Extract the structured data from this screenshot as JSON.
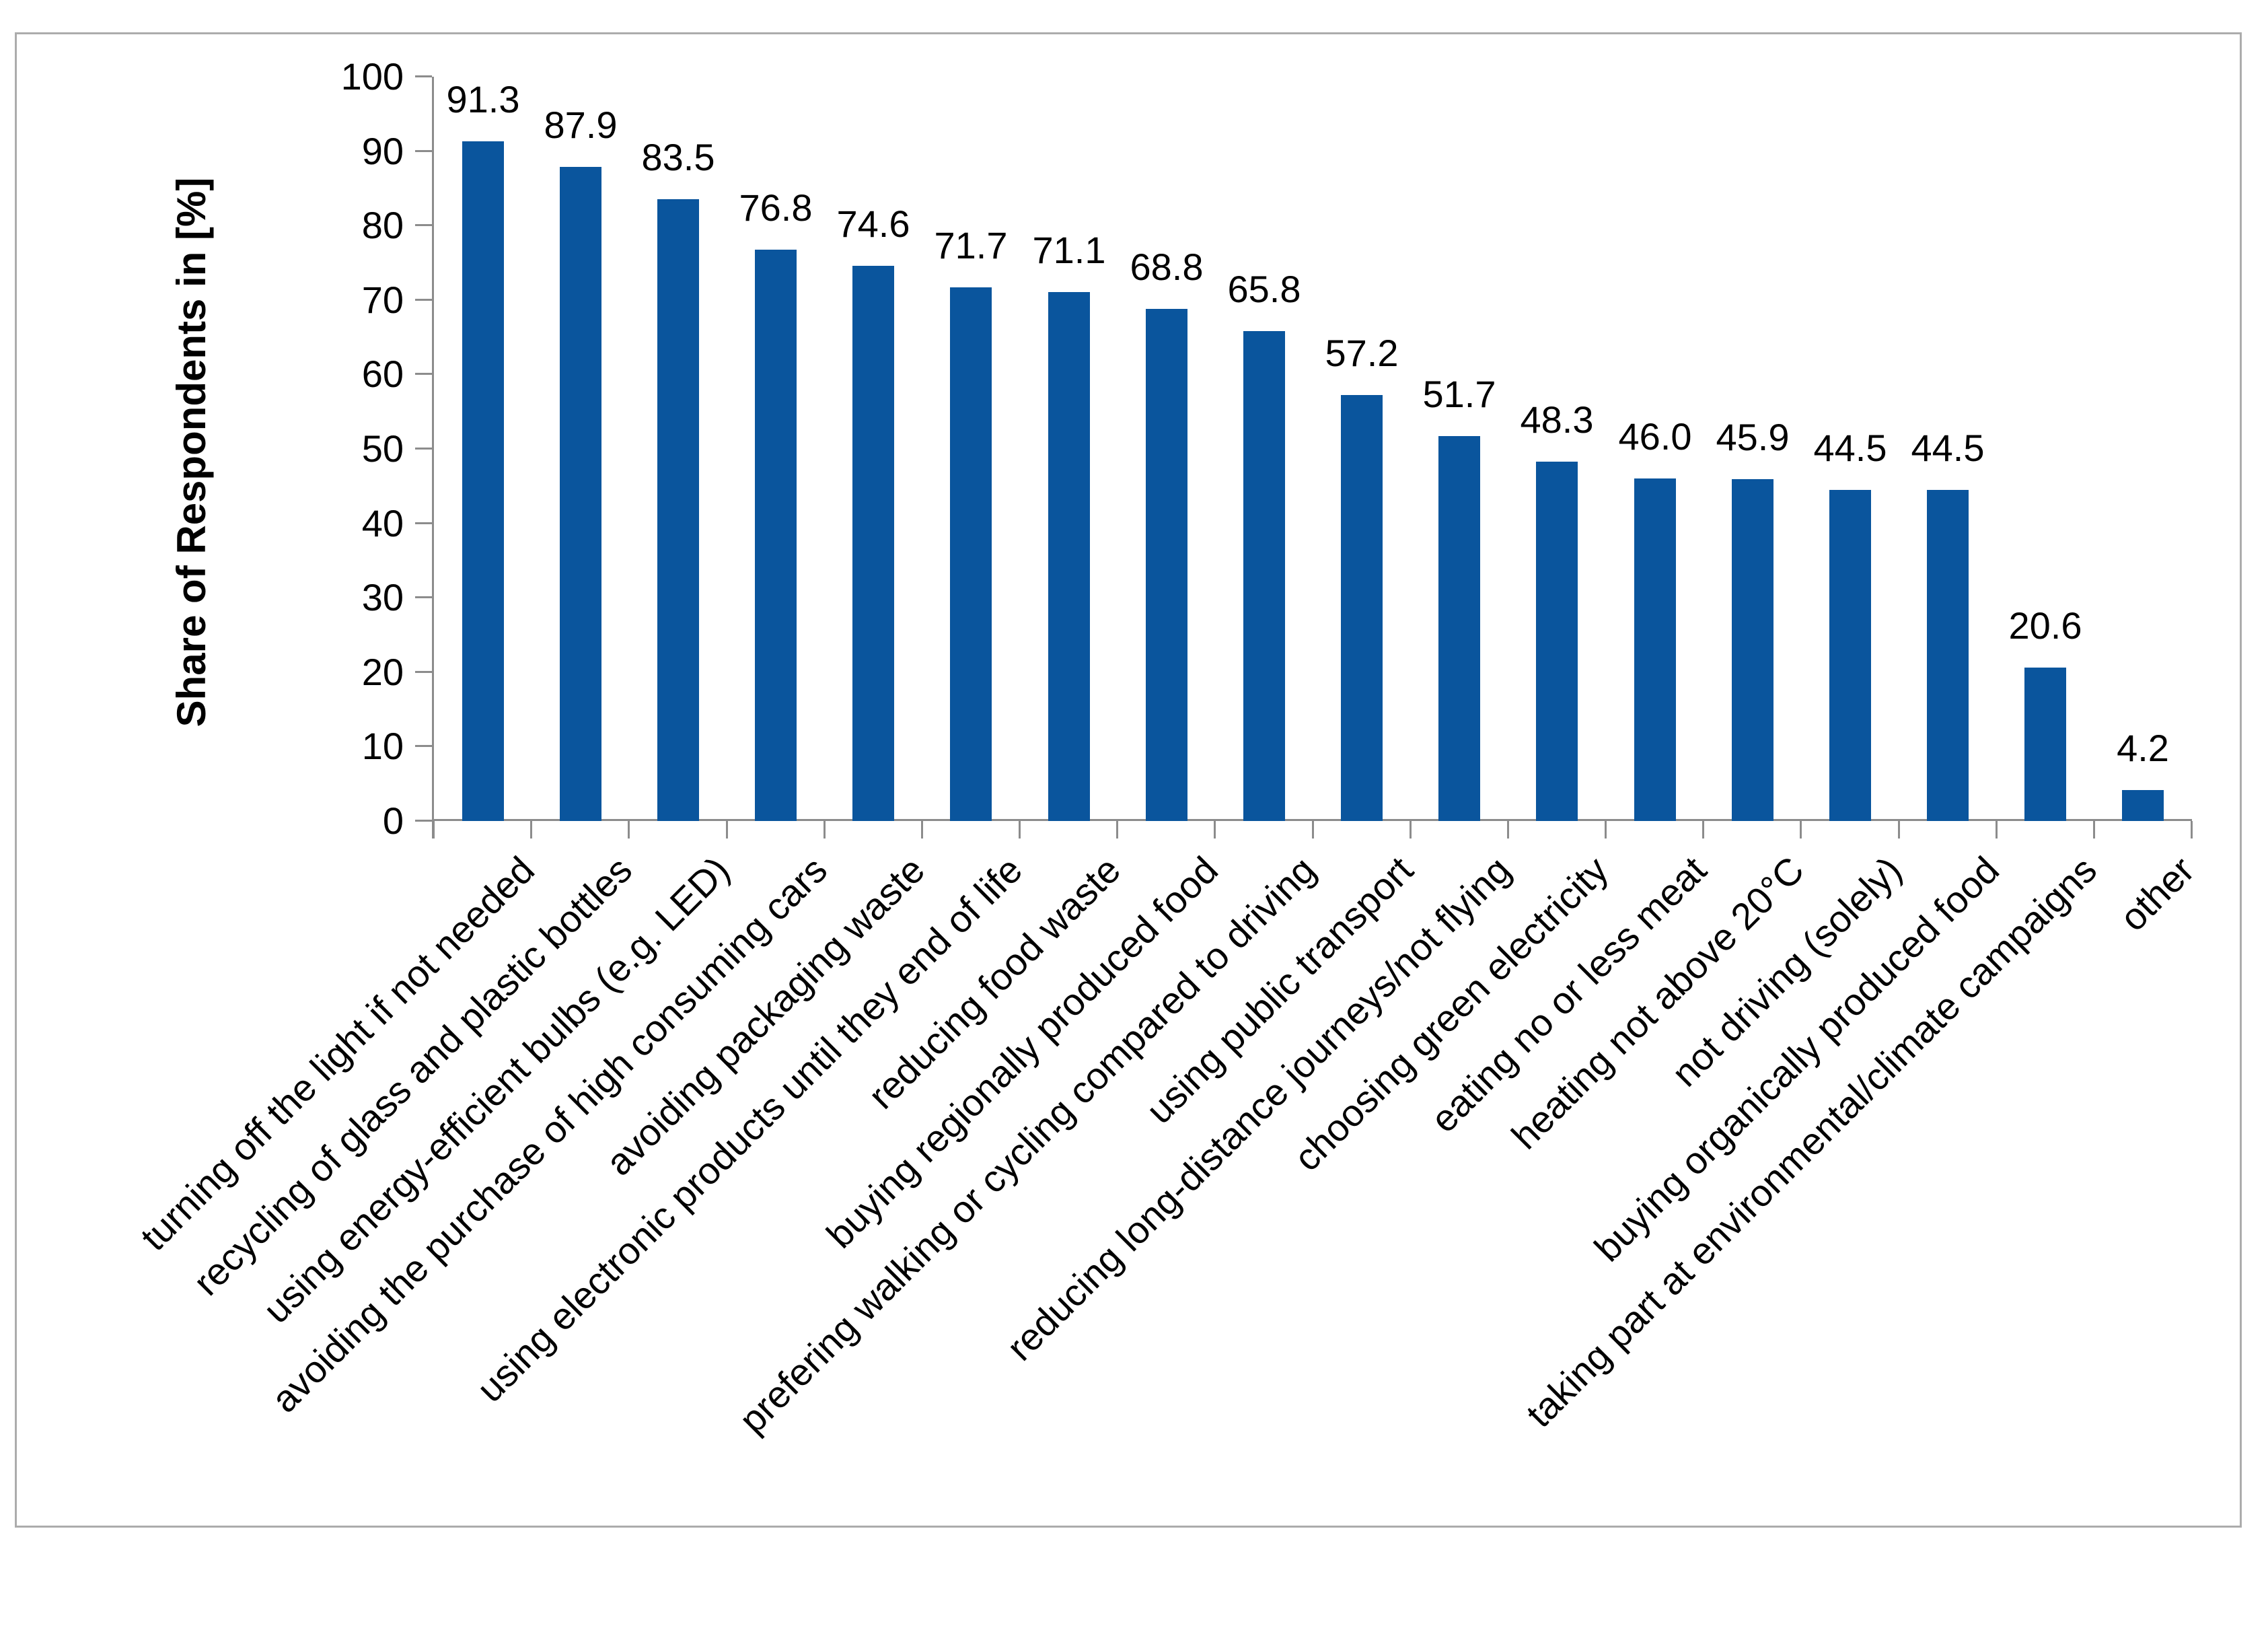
{
  "chart_data": {
    "type": "bar",
    "title": "",
    "xlabel": "",
    "ylabel": "Share of Respondents in [%]",
    "ylim": [
      0,
      100
    ],
    "ytick_step": 10,
    "grid": false,
    "legend": null,
    "value_labels": "outside-end, one decimal",
    "categories": [
      "turning off the light if not needed",
      "recycling of glass and plastic bottles",
      "using energy-efficient bulbs (e.g. LED)",
      "avoiding the purchase of high consuming cars",
      "avoiding packaging waste",
      "using electronic products until they end of life",
      "reducing food waste",
      "buying regionally produced food",
      "prefering walking or cycling compared to driving",
      "using public transport",
      "reducing long-distance journeys/not flying",
      "choosing green electricity",
      "eating no or less meat",
      "heating not above 20°C",
      "not driving (solely)",
      "buying organically produced food",
      "taking part at environmental/climate campaigns",
      "other"
    ],
    "values": [
      91.3,
      87.9,
      83.5,
      76.8,
      74.6,
      71.7,
      71.1,
      68.8,
      65.8,
      57.2,
      51.7,
      48.3,
      46.0,
      45.9,
      44.5,
      44.5,
      20.6,
      4.2
    ],
    "value_label_texts": [
      "91.3",
      "87.9",
      "83.5",
      "76.8",
      "74.6",
      "71.7",
      "71.1",
      "68.8",
      "65.8",
      "57.2",
      "51.7",
      "48.3",
      "46.0",
      "45.9",
      "44.5",
      "44.5",
      "20.6",
      "4.2"
    ],
    "ytick_labels": [
      "0",
      "10",
      "20",
      "30",
      "40",
      "50",
      "60",
      "70",
      "80",
      "90",
      "100"
    ]
  },
  "colors": {
    "bar": "#0A559D",
    "axis": "#8C8C8C",
    "text": "#000000",
    "frame": "#ACACAC",
    "background": "#FFFFFF"
  }
}
